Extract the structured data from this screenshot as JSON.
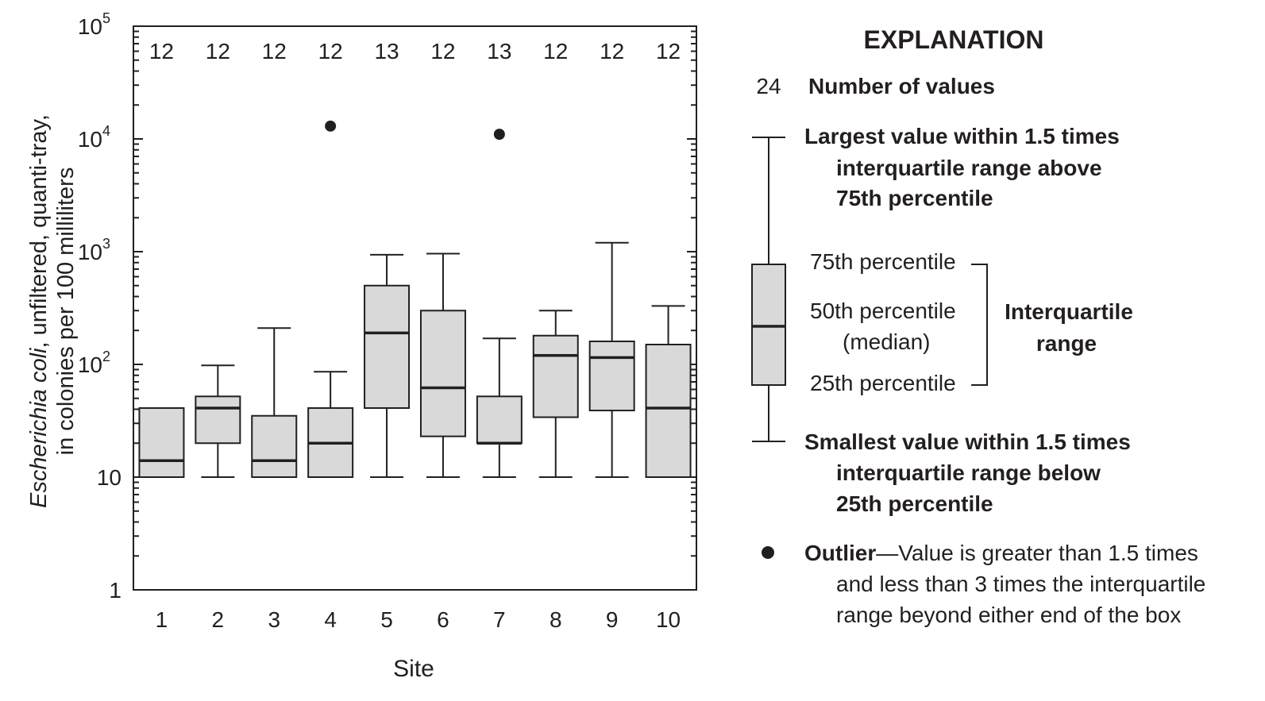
{
  "chart_data": {
    "type": "box",
    "ylabel_italic": "Escherichia coli",
    "ylabel_rest": ", unfiltered, quanti-tray,",
    "ylabel_line2": "in colonies per 100 milliliters",
    "xlabel": "Site",
    "yscale": "log",
    "ylim": [
      1,
      100000
    ],
    "yticks": [
      {
        "label": "1",
        "sup": ""
      },
      {
        "label": "10",
        "sup": ""
      },
      {
        "label": "10",
        "sup": "2"
      },
      {
        "label": "10",
        "sup": "3"
      },
      {
        "label": "10",
        "sup": "4"
      },
      {
        "label": "10",
        "sup": "5"
      }
    ],
    "categories": [
      "1",
      "2",
      "3",
      "4",
      "5",
      "6",
      "7",
      "8",
      "9",
      "10"
    ],
    "counts": [
      "12",
      "12",
      "12",
      "12",
      "13",
      "12",
      "13",
      "12",
      "12",
      "12"
    ],
    "boxes": [
      {
        "site": "1",
        "whisker_low": 10,
        "q1": 10,
        "median": 14,
        "q3": 41,
        "whisker_high": 41
      },
      {
        "site": "2",
        "whisker_low": 10,
        "q1": 20,
        "median": 41,
        "q3": 52,
        "whisker_high": 98
      },
      {
        "site": "3",
        "whisker_low": 10,
        "q1": 10,
        "median": 14,
        "q3": 35,
        "whisker_high": 210
      },
      {
        "site": "4",
        "whisker_low": 10,
        "q1": 10,
        "median": 20,
        "q3": 41,
        "whisker_high": 86
      },
      {
        "site": "5",
        "whisker_low": 10,
        "q1": 41,
        "median": 190,
        "q3": 500,
        "whisker_high": 940
      },
      {
        "site": "6",
        "whisker_low": 10,
        "q1": 23,
        "median": 62,
        "q3": 300,
        "whisker_high": 960
      },
      {
        "site": "7",
        "whisker_low": 10,
        "q1": 20,
        "median": 20,
        "q3": 52,
        "whisker_high": 170
      },
      {
        "site": "8",
        "whisker_low": 10,
        "q1": 34,
        "median": 120,
        "q3": 180,
        "whisker_high": 300
      },
      {
        "site": "9",
        "whisker_low": 10,
        "q1": 39,
        "median": 115,
        "q3": 160,
        "whisker_high": 1200
      },
      {
        "site": "10",
        "whisker_low": 10,
        "q1": 10,
        "median": 41,
        "q3": 150,
        "whisker_high": 330
      }
    ],
    "outliers": [
      {
        "site": "4",
        "value": 13000
      },
      {
        "site": "7",
        "value": 11000
      }
    ],
    "grid": false
  },
  "explanation": {
    "title": "EXPLANATION",
    "count_example": "24",
    "count_label": "Number of values",
    "upper_whisker": [
      "Largest value within 1.5 times",
      "interquartile range above",
      "75th percentile"
    ],
    "p75": "75th percentile",
    "p50": "50th percentile",
    "p50_sub": "(median)",
    "p25": "25th percentile",
    "iqr": [
      "Interquartile",
      "range"
    ],
    "lower_whisker": [
      "Smallest value within 1.5 times",
      "interquartile range below",
      "25th percentile"
    ],
    "outlier_bold": "Outlier",
    "outlier_text": [
      "—Value is greater than 1.5 times",
      "and less than 3 times the interquartile",
      "range beyond either end of the box"
    ]
  },
  "colors": {
    "box_fill": "#d9d9d9",
    "ink": "#231f20"
  }
}
